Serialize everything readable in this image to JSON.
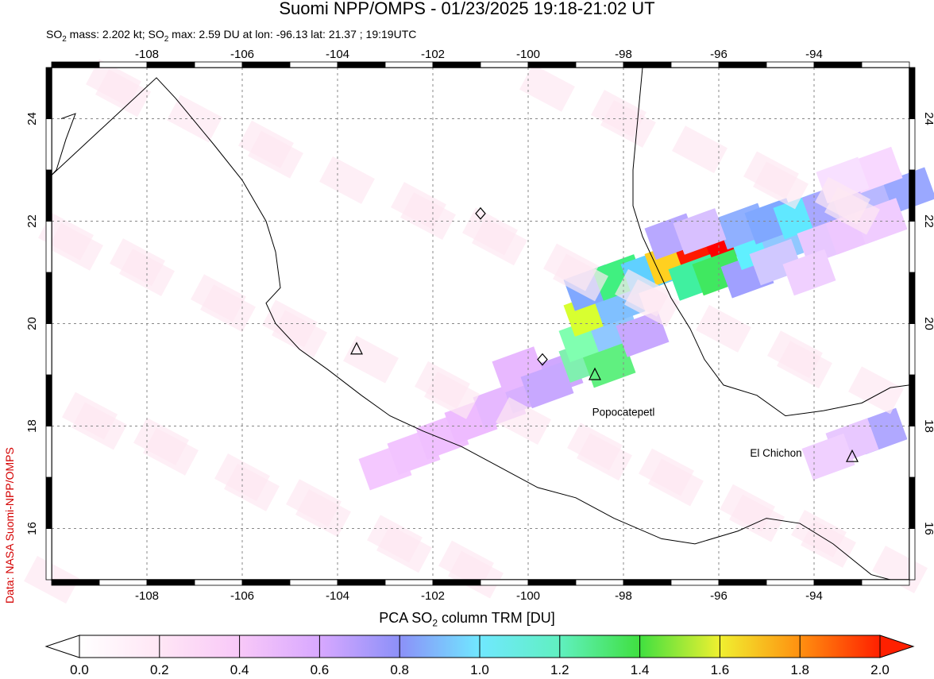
{
  "header": {
    "title": "Suomi NPP/OMPS - 01/23/2025 19:18-21:02 UT",
    "subtitle_parts": [
      "SO",
      "2",
      " mass: 2.202 kt; SO",
      "2",
      " max: 2.59 DU at lon: -96.13 lat: 21.37 ; 19:19UTC"
    ]
  },
  "credit": "Data: NASA Suomi-NPP/OMPS",
  "map": {
    "lon_range": [
      -110,
      -92
    ],
    "lat_range": [
      15,
      25
    ],
    "lon_ticks": [
      -108,
      -106,
      -104,
      -102,
      -100,
      -98,
      -96,
      -94
    ],
    "lat_ticks": [
      16,
      18,
      20,
      22,
      24
    ],
    "grid": true,
    "labels": [
      {
        "text": "Popocatepetl",
        "lon": -98.0,
        "lat": 18.2
      },
      {
        "text": "El Chichon",
        "lon": -94.8,
        "lat": 17.4
      }
    ],
    "volcano_triangles": [
      {
        "lon": -103.6,
        "lat": 19.5
      },
      {
        "lon": -98.6,
        "lat": 19.0
      },
      {
        "lon": -93.2,
        "lat": 17.4
      }
    ],
    "diamonds": [
      {
        "lon": -101.0,
        "lat": 22.15
      },
      {
        "lon": -99.7,
        "lat": 19.3
      }
    ]
  },
  "colorbar": {
    "title_parts": [
      "PCA SO",
      "2",
      " column TRM [DU]"
    ],
    "min": 0.0,
    "max": 2.0,
    "tick_labels": [
      "0.0",
      "0.2",
      "0.4",
      "0.6",
      "0.8",
      "1.0",
      "1.2",
      "1.4",
      "1.6",
      "1.8",
      "2.0"
    ]
  }
}
